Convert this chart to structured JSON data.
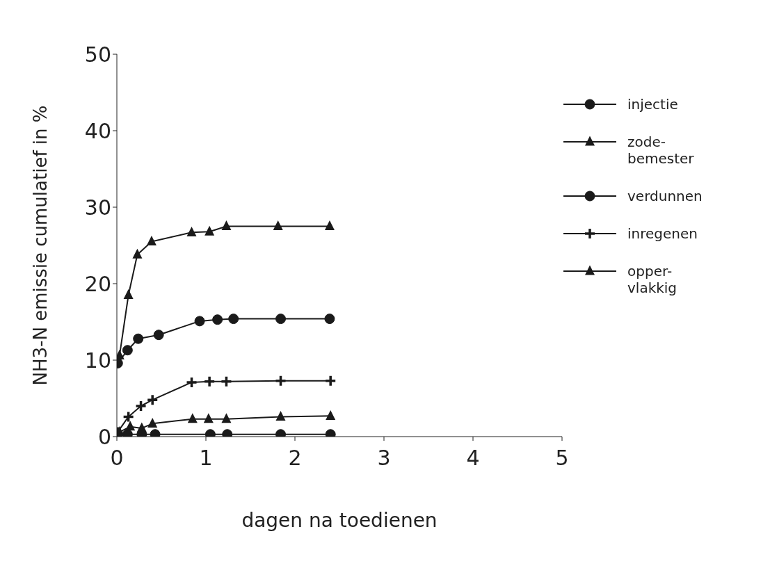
{
  "chart_data": {
    "type": "line",
    "xlabel": "dagen na toedienen",
    "ylabel": "NH3-N emissie cumulatief in %",
    "xlim": [
      0,
      5
    ],
    "xticks": [
      0,
      1,
      2,
      3,
      4,
      5
    ],
    "ylim": [
      0,
      50
    ],
    "yticks": [
      0,
      10,
      20,
      30,
      40,
      50
    ],
    "legend": "right",
    "line_style": "solid",
    "series": [
      {
        "name": "injectie",
        "color": "#1a1a1a",
        "marker": "circle",
        "x": [
          0.01,
          0.12,
          0.28,
          0.43,
          1.05,
          1.24,
          1.84,
          2.4
        ],
        "values": [
          0.3,
          0.3,
          0.3,
          0.3,
          0.3,
          0.3,
          0.3,
          0.3
        ]
      },
      {
        "name": "zode-\nbemester",
        "color": "#1a1a1a",
        "marker": "triangle",
        "x": [
          0.03,
          0.15,
          0.28,
          0.4,
          0.85,
          1.03,
          1.23,
          1.84,
          2.4
        ],
        "values": [
          0.6,
          1.3,
          1.1,
          1.7,
          2.3,
          2.3,
          2.3,
          2.6,
          2.7
        ]
      },
      {
        "name": "verdunnen",
        "color": "#1a1a1a",
        "marker": "circle",
        "x": [
          0.01,
          0.12,
          0.24,
          0.47,
          0.93,
          1.13,
          1.31,
          1.84,
          2.39
        ],
        "values": [
          9.6,
          11.3,
          12.8,
          13.3,
          15.1,
          15.3,
          15.4,
          15.4,
          15.4
        ]
      },
      {
        "name": "inregenen",
        "color": "#1a1a1a",
        "marker": "cross",
        "x": [
          0.01,
          0.13,
          0.27,
          0.4,
          0.84,
          1.04,
          1.23,
          1.84,
          2.4
        ],
        "values": [
          0.6,
          2.6,
          4.0,
          4.8,
          7.1,
          7.2,
          7.2,
          7.3,
          7.3
        ]
      },
      {
        "name": "opper-\nvlakkig",
        "color": "#1a1a1a",
        "marker": "triangle",
        "x": [
          0.03,
          0.13,
          0.23,
          0.39,
          0.84,
          1.04,
          1.23,
          1.81,
          2.39
        ],
        "values": [
          10.6,
          18.5,
          23.8,
          25.5,
          26.7,
          26.8,
          27.5,
          27.5,
          27.5
        ]
      }
    ]
  }
}
